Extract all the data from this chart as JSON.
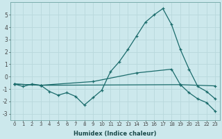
{
  "xlabel": "Humidex (Indice chaleur)",
  "bg_color": "#cce8ec",
  "grid_color": "#b8d8dc",
  "line_color": "#1a6b6b",
  "ylim": [
    -3.5,
    6.0
  ],
  "xlim": [
    -0.5,
    23.5
  ],
  "yticks": [
    -3,
    -2,
    -1,
    0,
    1,
    2,
    3,
    4,
    5
  ],
  "xticks": [
    0,
    1,
    2,
    3,
    4,
    5,
    6,
    7,
    8,
    9,
    10,
    11,
    12,
    13,
    14,
    15,
    16,
    17,
    18,
    19,
    20,
    21,
    22,
    23
  ],
  "line1_x": [
    0,
    1,
    2,
    3,
    4,
    5,
    6,
    7,
    8,
    9,
    10,
    11,
    12,
    13,
    14,
    15,
    16,
    17,
    18,
    19,
    20,
    21,
    22,
    23
  ],
  "line1_y": [
    -0.6,
    -0.8,
    -0.6,
    -0.7,
    -1.2,
    -1.5,
    -1.3,
    -1.6,
    -2.3,
    -1.7,
    -1.1,
    0.4,
    1.2,
    2.2,
    3.3,
    4.4,
    5.0,
    5.5,
    4.2,
    2.2,
    0.6,
    -0.8,
    -1.2,
    -1.8
  ],
  "line2_x": [
    0,
    3,
    19,
    23
  ],
  "line2_y": [
    -0.6,
    -0.7,
    -0.65,
    -0.75
  ],
  "line3_x": [
    0,
    3,
    9,
    14,
    18,
    19,
    20,
    21,
    22,
    23
  ],
  "line3_y": [
    -0.6,
    -0.7,
    -0.4,
    0.3,
    0.6,
    -0.65,
    -1.3,
    -1.8,
    -2.1,
    -2.8
  ]
}
